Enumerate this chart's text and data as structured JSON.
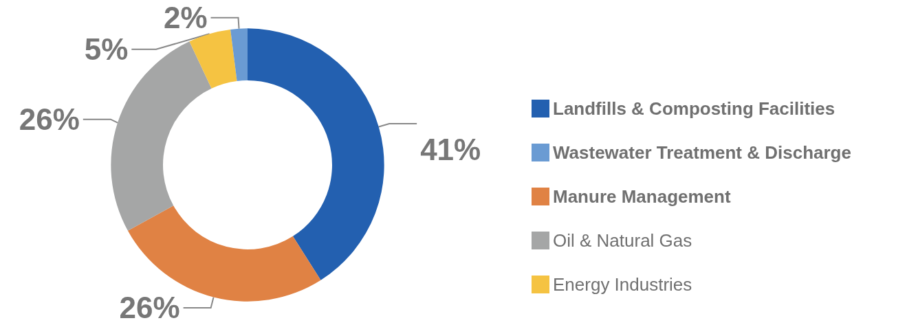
{
  "chart_data": {
    "type": "donut",
    "categories": [
      "Landfills & Composting Facilities",
      "Wastewater Treatment & Discharge",
      "Manure Management",
      "Oil & Natural Gas",
      "Energy Industries"
    ],
    "values": [
      41,
      2,
      26,
      26,
      5
    ],
    "colors": [
      "#2360b0",
      "#6a9bd3",
      "#e08244",
      "#a5a6a6",
      "#f5c342"
    ],
    "value_labels": [
      "41%",
      "2%",
      "26%",
      "26%",
      "5%"
    ],
    "legend": "right"
  }
}
